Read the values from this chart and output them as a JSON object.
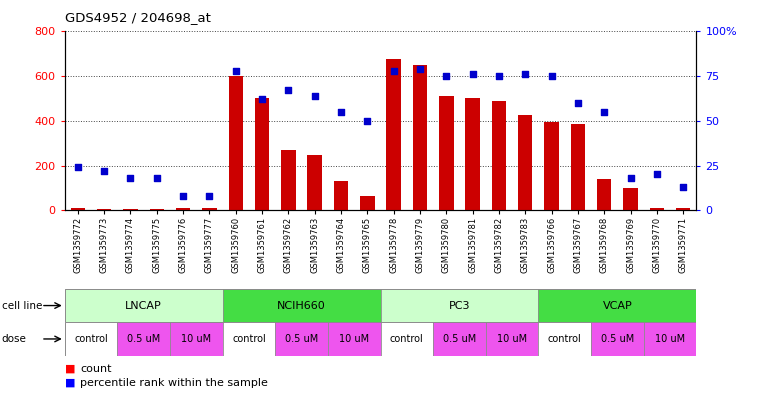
{
  "title": "GDS4952 / 204698_at",
  "samples": [
    "GSM1359772",
    "GSM1359773",
    "GSM1359774",
    "GSM1359775",
    "GSM1359776",
    "GSM1359777",
    "GSM1359760",
    "GSM1359761",
    "GSM1359762",
    "GSM1359763",
    "GSM1359764",
    "GSM1359765",
    "GSM1359778",
    "GSM1359779",
    "GSM1359780",
    "GSM1359781",
    "GSM1359782",
    "GSM1359783",
    "GSM1359766",
    "GSM1359767",
    "GSM1359768",
    "GSM1359769",
    "GSM1359770",
    "GSM1359771"
  ],
  "counts": [
    8,
    7,
    6,
    5,
    8,
    10,
    600,
    500,
    270,
    245,
    130,
    65,
    675,
    650,
    510,
    500,
    490,
    425,
    395,
    385,
    140,
    100,
    10,
    10
  ],
  "percentiles": [
    24,
    22,
    18,
    18,
    8,
    8,
    78,
    62,
    67,
    64,
    55,
    50,
    78,
    79,
    75,
    76,
    75,
    76,
    75,
    60,
    55,
    18,
    20,
    13
  ],
  "cell_lines": [
    {
      "name": "LNCAP",
      "start": 0,
      "end": 6,
      "color": "#CCFFCC"
    },
    {
      "name": "NCIH660",
      "start": 6,
      "end": 12,
      "color": "#44DD44"
    },
    {
      "name": "PC3",
      "start": 12,
      "end": 18,
      "color": "#CCFFCC"
    },
    {
      "name": "VCAP",
      "start": 18,
      "end": 24,
      "color": "#44DD44"
    }
  ],
  "dose_groups": [
    {
      "name": "control",
      "color": "#FFFFFF"
    },
    {
      "name": "0.5 uM",
      "color": "#EE55EE"
    },
    {
      "name": "10 uM",
      "color": "#EE55EE"
    }
  ],
  "bar_color": "#CC0000",
  "dot_color": "#0000CC",
  "ylim_left": [
    0,
    800
  ],
  "ylim_right": [
    0,
    100
  ],
  "yticks_left": [
    0,
    200,
    400,
    600,
    800
  ],
  "yticks_right": [
    0,
    25,
    50,
    75,
    100
  ],
  "background_color": "#FFFFFF",
  "grid_color": "#444444"
}
